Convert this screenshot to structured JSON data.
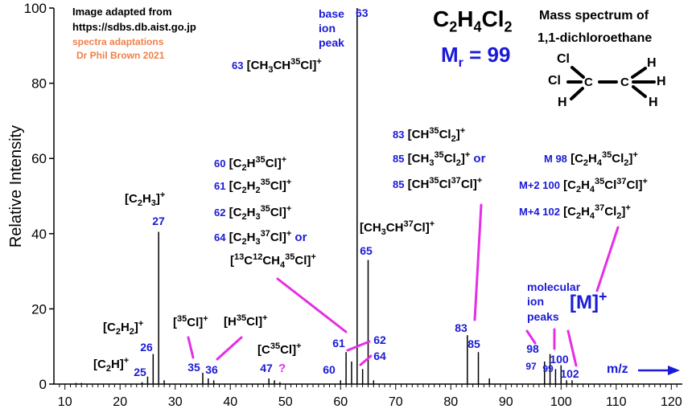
{
  "credit": {
    "line1": "Image adapted from",
    "line2": "https://sdbs.db.aist.go.jp",
    "line3": "spectra adaptations",
    "line4": "Dr Phil Brown 2021"
  },
  "formula": {
    "c": "C",
    "c_sub": "2",
    "h": "H",
    "h_sub": "4",
    "cl": "Cl",
    "cl_sub": "2"
  },
  "mr": {
    "m": "M",
    "sub": "r",
    "value": " = 99"
  },
  "title": {
    "line1": "Mass spectrum of",
    "line2": "1,1-dichloroethane"
  },
  "structure": {
    "atoms": [
      "Cl",
      "Cl",
      "C",
      "C",
      "H",
      "H",
      "H",
      "H"
    ]
  },
  "base_peak": {
    "line1": "base",
    "line2": "ion",
    "line3": "peak",
    "mz": "63"
  },
  "chart_data": {
    "type": "bar",
    "ylabel": "Relative Intensity",
    "xlabel": "m/z",
    "xlim": [
      8,
      122
    ],
    "ylim": [
      0,
      100
    ],
    "xticks": [
      10,
      20,
      30,
      40,
      50,
      60,
      70,
      80,
      90,
      100,
      110,
      120
    ],
    "yticks": [
      0,
      20,
      40,
      60,
      80,
      100
    ],
    "grid": false,
    "peaks": [
      {
        "mz": 12,
        "intensity": 0.3
      },
      {
        "mz": 13,
        "intensity": 0.3
      },
      {
        "mz": 24,
        "intensity": 0.5
      },
      {
        "mz": 25,
        "intensity": 2
      },
      {
        "mz": 26,
        "intensity": 8
      },
      {
        "mz": 27,
        "intensity": 40.5
      },
      {
        "mz": 28,
        "intensity": 1
      },
      {
        "mz": 35,
        "intensity": 3
      },
      {
        "mz": 36,
        "intensity": 1.5
      },
      {
        "mz": 37,
        "intensity": 1
      },
      {
        "mz": 47,
        "intensity": 1.5
      },
      {
        "mz": 48,
        "intensity": 1
      },
      {
        "mz": 49,
        "intensity": 0.5
      },
      {
        "mz": 60,
        "intensity": 1
      },
      {
        "mz": 61,
        "intensity": 8.5
      },
      {
        "mz": 62,
        "intensity": 6
      },
      {
        "mz": 63,
        "intensity": 100
      },
      {
        "mz": 64,
        "intensity": 4
      },
      {
        "mz": 65,
        "intensity": 33
      },
      {
        "mz": 66,
        "intensity": 1
      },
      {
        "mz": 83,
        "intensity": 13
      },
      {
        "mz": 85,
        "intensity": 8.5
      },
      {
        "mz": 87,
        "intensity": 1.5
      },
      {
        "mz": 97,
        "intensity": 6
      },
      {
        "mz": 98,
        "intensity": 8
      },
      {
        "mz": 99,
        "intensity": 4
      },
      {
        "mz": 100,
        "intensity": 5
      },
      {
        "mz": 101,
        "intensity": 1
      },
      {
        "mz": 102,
        "intensity": 1
      }
    ],
    "peak_labels": [
      "25",
      "26",
      "27",
      "35",
      "36",
      "47",
      "60",
      "61",
      "62",
      "63",
      "64",
      "65",
      "83",
      "85",
      "97",
      "98",
      "99",
      "100",
      "102"
    ],
    "colors": {
      "bars": "#000000",
      "labels": "#1a1ad6",
      "connectors": "#e62ee6",
      "arrow": "#1a1ad6",
      "credit": "#f0804a"
    }
  },
  "annotations": {
    "frag_63": {
      "mz": "63",
      "ion": "[CH",
      "sub1": "3",
      "mid": "CH",
      "sup1": "35",
      "end": "Cl]",
      "charge": "+"
    },
    "frag_27": {
      "ion": "[C",
      "sub1": "2",
      "mid": "H",
      "sub2": "3",
      "end": "]",
      "charge": "+"
    },
    "frag_26": {
      "ion": "[C",
      "sub1": "2",
      "mid": "H",
      "sub2": "2",
      "end": "]",
      "charge": "+"
    },
    "frag_25": {
      "ion": "[C",
      "sub1": "2",
      "end": "H]",
      "charge": "+"
    },
    "frag_35": {
      "open": "[",
      "sup1": "35",
      "end": "Cl]",
      "charge": "+"
    },
    "frag_36": {
      "open": "[H",
      "sup1": "35",
      "end": "Cl]",
      "charge": "+"
    },
    "frag_47": {
      "open": "[C",
      "sup1": "35",
      "end": "Cl]",
      "charge": "+",
      "query": "?"
    },
    "frag_65": {
      "ion": "[CH",
      "sub1": "3",
      "mid": "CH",
      "sup1": "37",
      "end": "Cl]",
      "charge": "+"
    },
    "list_60": {
      "mz": "60",
      "ion": "[C",
      "sub1": "2",
      "mid": "H",
      "sup1": "35",
      "end": "Cl]",
      "charge": "+"
    },
    "list_61": {
      "mz": "61",
      "ion": "[C",
      "sub1": "2",
      "mid": "H",
      "sub2": "2",
      "sup1": "35",
      "end": "Cl]",
      "charge": "+"
    },
    "list_62": {
      "mz": "62",
      "ion": "[C",
      "sub1": "2",
      "mid": "H",
      "sub2": "3",
      "sup1": "35",
      "end": "Cl]",
      "charge": "+"
    },
    "list_64": {
      "mz": "64",
      "ion": "[C",
      "sub1": "2",
      "mid": "H",
      "sub2": "3",
      "sup1": "37",
      "end": "Cl]",
      "charge": "+",
      "or": " or"
    },
    "list_64b": {
      "open": "[",
      "sup1": "13",
      "c1": "C",
      "sup2": "12",
      "mid": "CH",
      "sub1": "4",
      "sup3": "35",
      "end": "Cl]",
      "charge": "+"
    },
    "list_83": {
      "mz": "83",
      "ion": "[CH",
      "sup1": "35",
      "mid": "Cl",
      "sub1": "2",
      "end": "]",
      "charge": "+"
    },
    "list_85a": {
      "mz": "85",
      "ion": "[CH",
      "sub1": "3",
      "sup1": "35",
      "mid": "Cl",
      "sub2": "2",
      "end": "]",
      "charge": "+",
      "or": " or"
    },
    "list_85b": {
      "mz": "85",
      "ion": "[CH",
      "sup1": "35",
      "mid": "Cl",
      "sup2": "37",
      "end": "Cl]",
      "charge": "+"
    },
    "mol_98": {
      "label": "M 98",
      "ion": "[C",
      "sub1": "2",
      "mid": "H",
      "sub2": "4",
      "sup1": "35",
      "end": "Cl",
      "sub3": "2",
      "close": "]",
      "charge": "+"
    },
    "mol_100": {
      "label": "M+2 100",
      "ion": "[C",
      "sub1": "2",
      "mid": "H",
      "sub2": "4",
      "sup1": "35",
      "cl1": "Cl",
      "sup2": "37",
      "end": "Cl]",
      "charge": "+"
    },
    "mol_102": {
      "label": "M+4 102",
      "ion": "[C",
      "sub1": "2",
      "mid": "H",
      "sub2": "4",
      "sup1": "37",
      "end": "Cl",
      "sub3": "2",
      "close": "]",
      "charge": "+"
    },
    "molecular": {
      "line1": "molecular",
      "line2": "ion",
      "line3": "peaks",
      "big": "[M]",
      "charge": "+"
    }
  }
}
